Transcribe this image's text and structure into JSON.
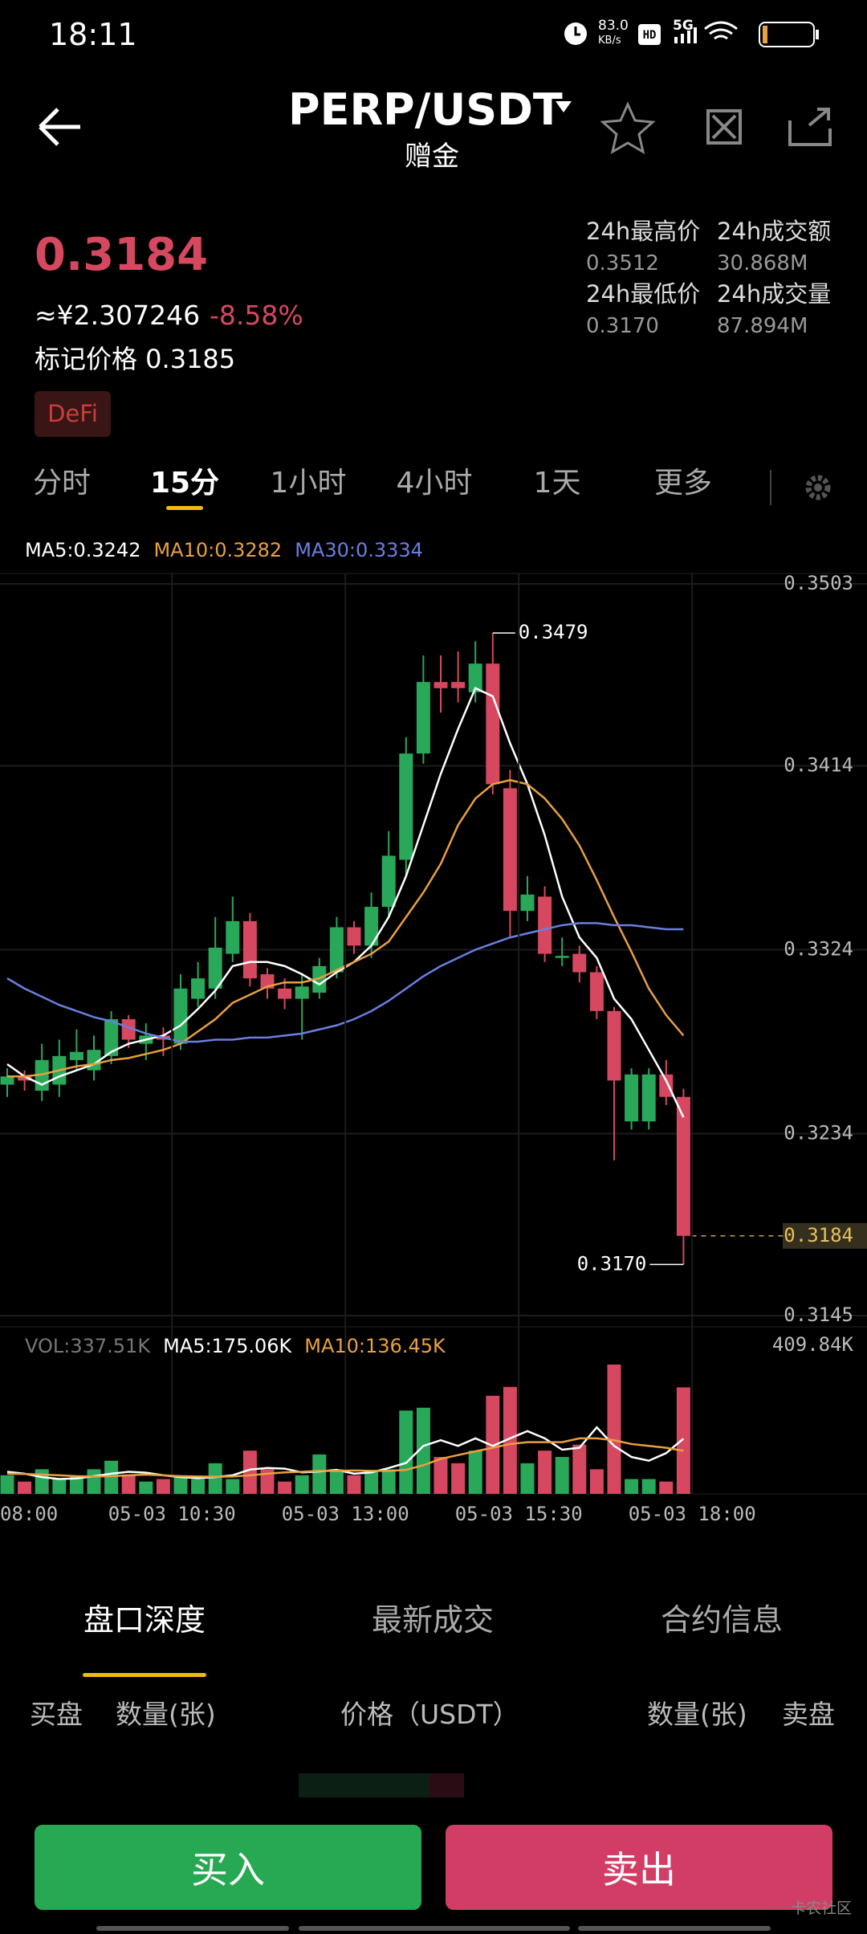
{
  "status_bar": {
    "time": "18:11",
    "speed": "83.0",
    "speed_unit": "KB/s",
    "network": "5G"
  },
  "header": {
    "symbol": "PERP/USDT",
    "subtitle": "赠金"
  },
  "ticker": {
    "price": "0.3184",
    "cny": "≈¥2.307246",
    "change": "-8.58%",
    "mark_price": "标记价格 0.3185",
    "tag": "DeFi",
    "stats": [
      {
        "label": "24h最高价",
        "value": "0.3512"
      },
      {
        "label": "24h成交额",
        "value": "30.868M"
      },
      {
        "label": "24h最低价",
        "value": "0.3170"
      },
      {
        "label": "24h成交量",
        "value": "87.894M"
      }
    ]
  },
  "intervals": {
    "items": [
      "分时",
      "15分",
      "1小时",
      "4小时",
      "1天",
      "更多"
    ],
    "selected": 1
  },
  "chart_data": [
    {
      "type": "candlestick",
      "up_color": "#2aa85a",
      "down_color": "#d5485f",
      "grid": true,
      "open": [
        0.3258,
        0.3262,
        0.3255,
        0.3258,
        0.327,
        0.3265,
        0.3272,
        0.329,
        0.3278,
        0.3282,
        0.3278,
        0.33,
        0.3305,
        0.3322,
        0.3338,
        0.3312,
        0.3305,
        0.33,
        0.3303,
        0.3313,
        0.3335,
        0.3326,
        0.3345,
        0.3368,
        0.342,
        0.3455,
        0.3455,
        0.345,
        0.3464,
        0.3403,
        0.3343,
        0.335,
        0.332,
        0.3322,
        0.3313,
        0.3294,
        0.324,
        0.324,
        0.3263,
        0.3252
      ],
      "high": [
        0.3266,
        0.3265,
        0.3278,
        0.328,
        0.3285,
        0.3282,
        0.3294,
        0.3292,
        0.3288,
        0.3286,
        0.3312,
        0.3318,
        0.334,
        0.335,
        0.3342,
        0.3315,
        0.331,
        0.3312,
        0.332,
        0.334,
        0.3338,
        0.3352,
        0.3382,
        0.3428,
        0.3468,
        0.3468,
        0.347,
        0.3475,
        0.3479,
        0.3412,
        0.336,
        0.3355,
        0.333,
        0.3326,
        0.3316,
        0.3296,
        0.3266,
        0.3266,
        0.327,
        0.3256
      ],
      "low": [
        0.3252,
        0.3255,
        0.325,
        0.3252,
        0.3265,
        0.326,
        0.3268,
        0.3276,
        0.327,
        0.3272,
        0.3275,
        0.3296,
        0.33,
        0.3318,
        0.3306,
        0.33,
        0.3295,
        0.328,
        0.33,
        0.331,
        0.3322,
        0.332,
        0.334,
        0.336,
        0.3415,
        0.344,
        0.3445,
        0.3445,
        0.34,
        0.333,
        0.3338,
        0.3318,
        0.3316,
        0.3308,
        0.329,
        0.3221,
        0.3236,
        0.3236,
        0.3248,
        0.317
      ],
      "close": [
        0.3262,
        0.326,
        0.327,
        0.3272,
        0.3274,
        0.3275,
        0.329,
        0.328,
        0.3282,
        0.328,
        0.3305,
        0.331,
        0.3325,
        0.3338,
        0.331,
        0.3305,
        0.33,
        0.3306,
        0.3316,
        0.3335,
        0.3326,
        0.3345,
        0.337,
        0.342,
        0.3455,
        0.3452,
        0.3452,
        0.3464,
        0.3405,
        0.3343,
        0.3351,
        0.3322,
        0.3321,
        0.3313,
        0.3294,
        0.326,
        0.3263,
        0.3263,
        0.3252,
        0.3184
      ],
      "series": [
        {
          "name": "MA5:0.3242",
          "color": "#ffffff",
          "values": [
            0.3268,
            0.3262,
            0.3258,
            0.3262,
            0.3265,
            0.3268,
            0.3274,
            0.3278,
            0.328,
            0.3282,
            0.3287,
            0.3295,
            0.3304,
            0.3316,
            0.3318,
            0.3318,
            0.3316,
            0.3312,
            0.3307,
            0.3313,
            0.3318,
            0.3326,
            0.334,
            0.336,
            0.3385,
            0.341,
            0.3432,
            0.3452,
            0.3448,
            0.3425,
            0.3405,
            0.338,
            0.335,
            0.333,
            0.332,
            0.33,
            0.329,
            0.3275,
            0.326,
            0.3242
          ]
        },
        {
          "name": "MA10:0.3282",
          "color": "#e8a040",
          "values": [
            0.3262,
            0.3262,
            0.3263,
            0.3265,
            0.3267,
            0.3268,
            0.327,
            0.3271,
            0.3273,
            0.3275,
            0.3278,
            0.3284,
            0.329,
            0.3298,
            0.3302,
            0.3306,
            0.3308,
            0.3308,
            0.331,
            0.3314,
            0.3318,
            0.3322,
            0.3328,
            0.334,
            0.3352,
            0.3366,
            0.3385,
            0.3398,
            0.3405,
            0.3407,
            0.3405,
            0.3398,
            0.3388,
            0.3375,
            0.3358,
            0.334,
            0.3323,
            0.3305,
            0.3292,
            0.3282
          ]
        },
        {
          "name": "MA30:0.3334",
          "color": "#6a7fe0",
          "values": [
            0.331,
            0.3305,
            0.3301,
            0.3297,
            0.3294,
            0.3291,
            0.3289,
            0.3286,
            0.3283,
            0.3281,
            0.3279,
            0.3279,
            0.328,
            0.328,
            0.3281,
            0.3281,
            0.3282,
            0.3283,
            0.3285,
            0.3287,
            0.329,
            0.3294,
            0.3299,
            0.3305,
            0.3311,
            0.3316,
            0.332,
            0.3324,
            0.3327,
            0.333,
            0.3332,
            0.3334,
            0.3336,
            0.3337,
            0.3337,
            0.3336,
            0.3336,
            0.3335,
            0.3334,
            0.3334
          ]
        }
      ],
      "ylim": [
        0.3145,
        0.3503
      ],
      "yticks": [
        0.3503,
        0.3414,
        0.3324,
        0.3234,
        0.3145
      ],
      "high_marker": 0.3479,
      "low_marker": {
        "value": 0.317,
        "label": "0.3170"
      },
      "last_price": 0.3184
    },
    {
      "type": "bar",
      "title": "VOL:337.51K",
      "values": [
        59,
        39,
        78,
        47,
        59,
        78,
        105,
        59,
        39,
        47,
        59,
        47,
        97,
        47,
        137,
        78,
        39,
        59,
        125,
        78,
        59,
        70,
        78,
        264,
        273,
        117,
        97,
        137,
        311,
        339,
        97,
        137,
        117,
        156,
        78,
        409.84,
        47,
        47,
        39,
        337.51
      ],
      "series": [
        {
          "name": "MA5:175.06K",
          "color": "#ffffff",
          "values": [
            70,
            64,
            53,
            47,
            49,
            56,
            64,
            70,
            67,
            59,
            53,
            50,
            53,
            59,
            77,
            82,
            80,
            68,
            71,
            76,
            64,
            68,
            82,
            98,
            152,
            170,
            152,
            176,
            152,
            176,
            199,
            176,
            140,
            146,
            211,
            152,
            117,
            105,
            129,
            175.06
          ]
        },
        {
          "name": "MA10:136.45K",
          "color": "#e8a040",
          "values": [
            64,
            63,
            61,
            59,
            56,
            55,
            56,
            59,
            61,
            59,
            56,
            55,
            54,
            55,
            59,
            64,
            68,
            70,
            73,
            73,
            74,
            73,
            73,
            76,
            91,
            111,
            123,
            135,
            146,
            158,
            164,
            164,
            164,
            176,
            176,
            170,
            158,
            152,
            146,
            136.45
          ]
        }
      ],
      "ylim": [
        0,
        409.84
      ],
      "yticks": [
        {
          "value": 409.84,
          "label": "409.84K"
        }
      ],
      "xticks": [
        {
          "value": -0.5,
          "label": "08:00"
        },
        {
          "value": 9.5,
          "label": "05-03 10:30"
        },
        {
          "value": 19.5,
          "label": "05-03 13:00"
        },
        {
          "value": 29.5,
          "label": "05-03 15:30"
        },
        {
          "value": 39.5,
          "label": "05-03 18:00"
        }
      ]
    }
  ],
  "bottom_tabs": {
    "items": [
      "盘口深度",
      "最新成交",
      "合约信息"
    ],
    "selected": 0
  },
  "order_book": {
    "columns": [
      "买盘",
      "数量(张)",
      "价格（USDT）",
      "数量(张)",
      "卖盘"
    ]
  },
  "actions": {
    "buy": "买入",
    "sell": "卖出"
  },
  "watermark": "卡农社区"
}
